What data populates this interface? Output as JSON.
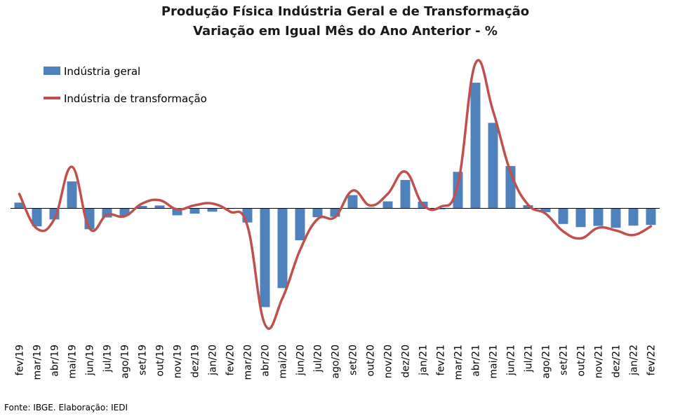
{
  "chart_data": {
    "type": "bar",
    "title": "Produção Física Indústria Geral e de Transformação",
    "subtitle": "Variação em Igual Mês do Ano Anterior - %",
    "categories": [
      "fev/19",
      "mar/19",
      "abr/19",
      "mai/19",
      "jun/19",
      "jul/19",
      "ago/19",
      "set/19",
      "out/19",
      "nov/19",
      "dez/19",
      "jan/20",
      "fev/20",
      "mar/20",
      "abr/20",
      "mai/20",
      "jun/20",
      "jul/20",
      "ago/20",
      "set/20",
      "out/20",
      "nov/20",
      "dez/20",
      "jan/21",
      "fev/21",
      "mar/21",
      "abr/21",
      "mai/21",
      "jun/21",
      "jul/21",
      "ago/21",
      "set/21",
      "out/21",
      "nov/21",
      "dez/21",
      "jan/22",
      "fev/22"
    ],
    "series": [
      {
        "name": "Indústria geral",
        "type": "bar",
        "color": "#4F81BD",
        "values": [
          2.4,
          -7.5,
          -4.6,
          11.2,
          -8.7,
          -3.8,
          -3.1,
          1.0,
          1.2,
          -2.9,
          -2.2,
          -1.4,
          0.0,
          -5.9,
          -41.1,
          -33.2,
          -13.3,
          -3.7,
          -3.5,
          5.5,
          0.3,
          2.9,
          11.8,
          2.8,
          -0.4,
          15.2,
          52.3,
          35.6,
          17.6,
          1.3,
          -1.6,
          -6.5,
          -7.8,
          -7.3,
          -8.1,
          -7.2,
          -6.9
        ]
      },
      {
        "name": "Indústria de transformação",
        "type": "line",
        "color": "#C0504D",
        "values": [
          6.0,
          -8.4,
          -4.4,
          17.3,
          -8.3,
          -2.7,
          -3.3,
          2.0,
          3.4,
          -0.4,
          1.3,
          2.0,
          -1.3,
          -7.2,
          -48.3,
          -37.4,
          -17.4,
          -4.5,
          -3.6,
          7.4,
          1.2,
          6.0,
          15.3,
          1.6,
          0.6,
          10.0,
          60.4,
          40.6,
          15.1,
          1.5,
          -2.2,
          -9.6,
          -12.5,
          -8.1,
          -9.2,
          -11.1,
          -7.5
        ]
      }
    ],
    "ylim": [
      -50,
      62
    ],
    "grid": false,
    "legend": "top-left",
    "source": "Fonte: IBGE. Elaboração: IEDI"
  }
}
